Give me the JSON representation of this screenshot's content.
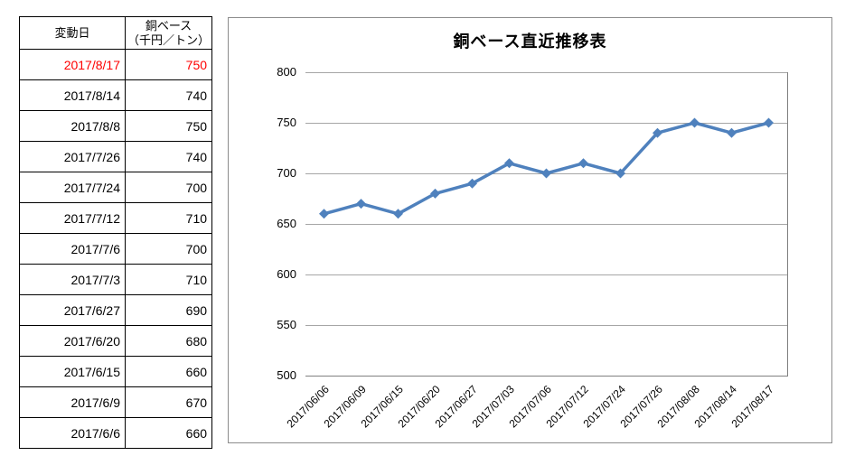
{
  "table": {
    "header": {
      "date_label": "変動日",
      "price_label_line1": "銅ベース",
      "price_label_line2": "（千円／トン）"
    },
    "highlight_color": "#ff0000",
    "rows": [
      {
        "date": "2017/8/17",
        "value": "750",
        "highlight": true
      },
      {
        "date": "2017/8/14",
        "value": "740",
        "highlight": false
      },
      {
        "date": "2017/8/8",
        "value": "750",
        "highlight": false
      },
      {
        "date": "2017/7/26",
        "value": "740",
        "highlight": false
      },
      {
        "date": "2017/7/24",
        "value": "700",
        "highlight": false
      },
      {
        "date": "2017/7/12",
        "value": "710",
        "highlight": false
      },
      {
        "date": "2017/7/6",
        "value": "700",
        "highlight": false
      },
      {
        "date": "2017/7/3",
        "value": "710",
        "highlight": false
      },
      {
        "date": "2017/6/27",
        "value": "690",
        "highlight": false
      },
      {
        "date": "2017/6/20",
        "value": "680",
        "highlight": false
      },
      {
        "date": "2017/6/15",
        "value": "660",
        "highlight": false
      },
      {
        "date": "2017/6/9",
        "value": "670",
        "highlight": false
      },
      {
        "date": "2017/6/6",
        "value": "660",
        "highlight": false
      }
    ]
  },
  "chart_data": {
    "type": "line",
    "title": "銅ベース直近推移表",
    "x": [
      "2017/06/06",
      "2017/06/09",
      "2017/06/15",
      "2017/06/20",
      "2017/06/27",
      "2017/07/03",
      "2017/07/06",
      "2017/07/12",
      "2017/07/24",
      "2017/07/26",
      "2017/08/08",
      "2017/08/14",
      "2017/08/17"
    ],
    "values": [
      660,
      670,
      660,
      680,
      690,
      710,
      700,
      710,
      700,
      740,
      750,
      740,
      750
    ],
    "xlabel": "",
    "ylabel": "",
    "ylim": [
      500,
      800
    ],
    "yticks": [
      800,
      750,
      700,
      650,
      600,
      550,
      500
    ],
    "grid": true,
    "legend": "none",
    "line_color": "#4F81BD",
    "marker": "diamond"
  }
}
